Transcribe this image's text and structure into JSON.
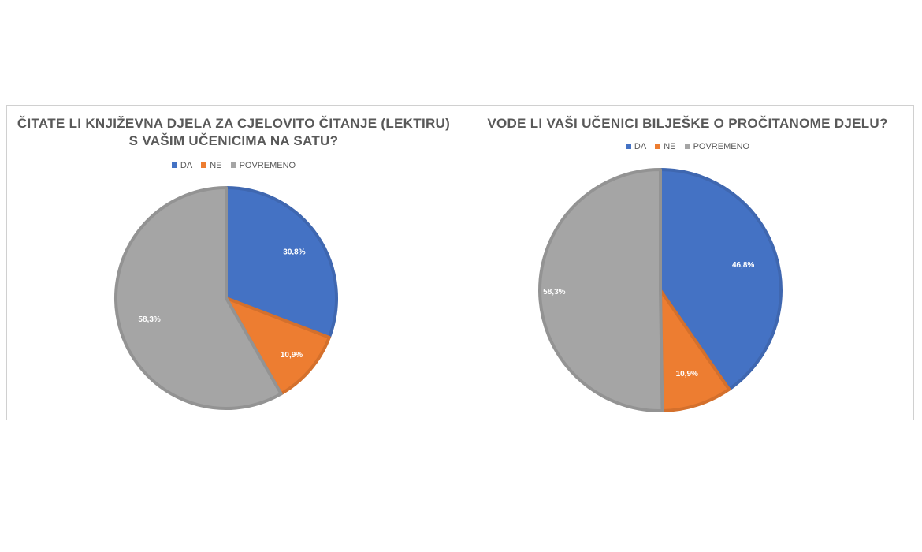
{
  "colors": {
    "da": "#4472C4",
    "ne": "#ED7D31",
    "povremeno": "#A5A5A5"
  },
  "chart_data": [
    {
      "type": "pie",
      "title_line1": "ČITATE LI KNJIŽEVNA DJELA ZA CJELOVITO ČITANJE (LEKTIRU)",
      "title_line2": "S VAŠIM UČENICIMA NA SATU?",
      "legend_placement": "top",
      "categories": [
        "DA",
        "NE",
        "POVREMENO"
      ],
      "values": [
        30.8,
        10.9,
        58.3
      ],
      "data_labels": [
        "30,8%",
        "10,9%",
        "58,3%"
      ]
    },
    {
      "type": "pie",
      "title_line1": "VODE LI VAŠI UČENICI BILJEŠKE O PROČITANOME DJELU?",
      "title_line2": "",
      "legend_placement": "top",
      "categories": [
        "DA",
        "NE",
        "POVREMENO"
      ],
      "values": [
        46.8,
        10.9,
        58.3
      ],
      "data_labels": [
        "46,8%",
        "10,9%",
        "58,3%"
      ]
    }
  ]
}
